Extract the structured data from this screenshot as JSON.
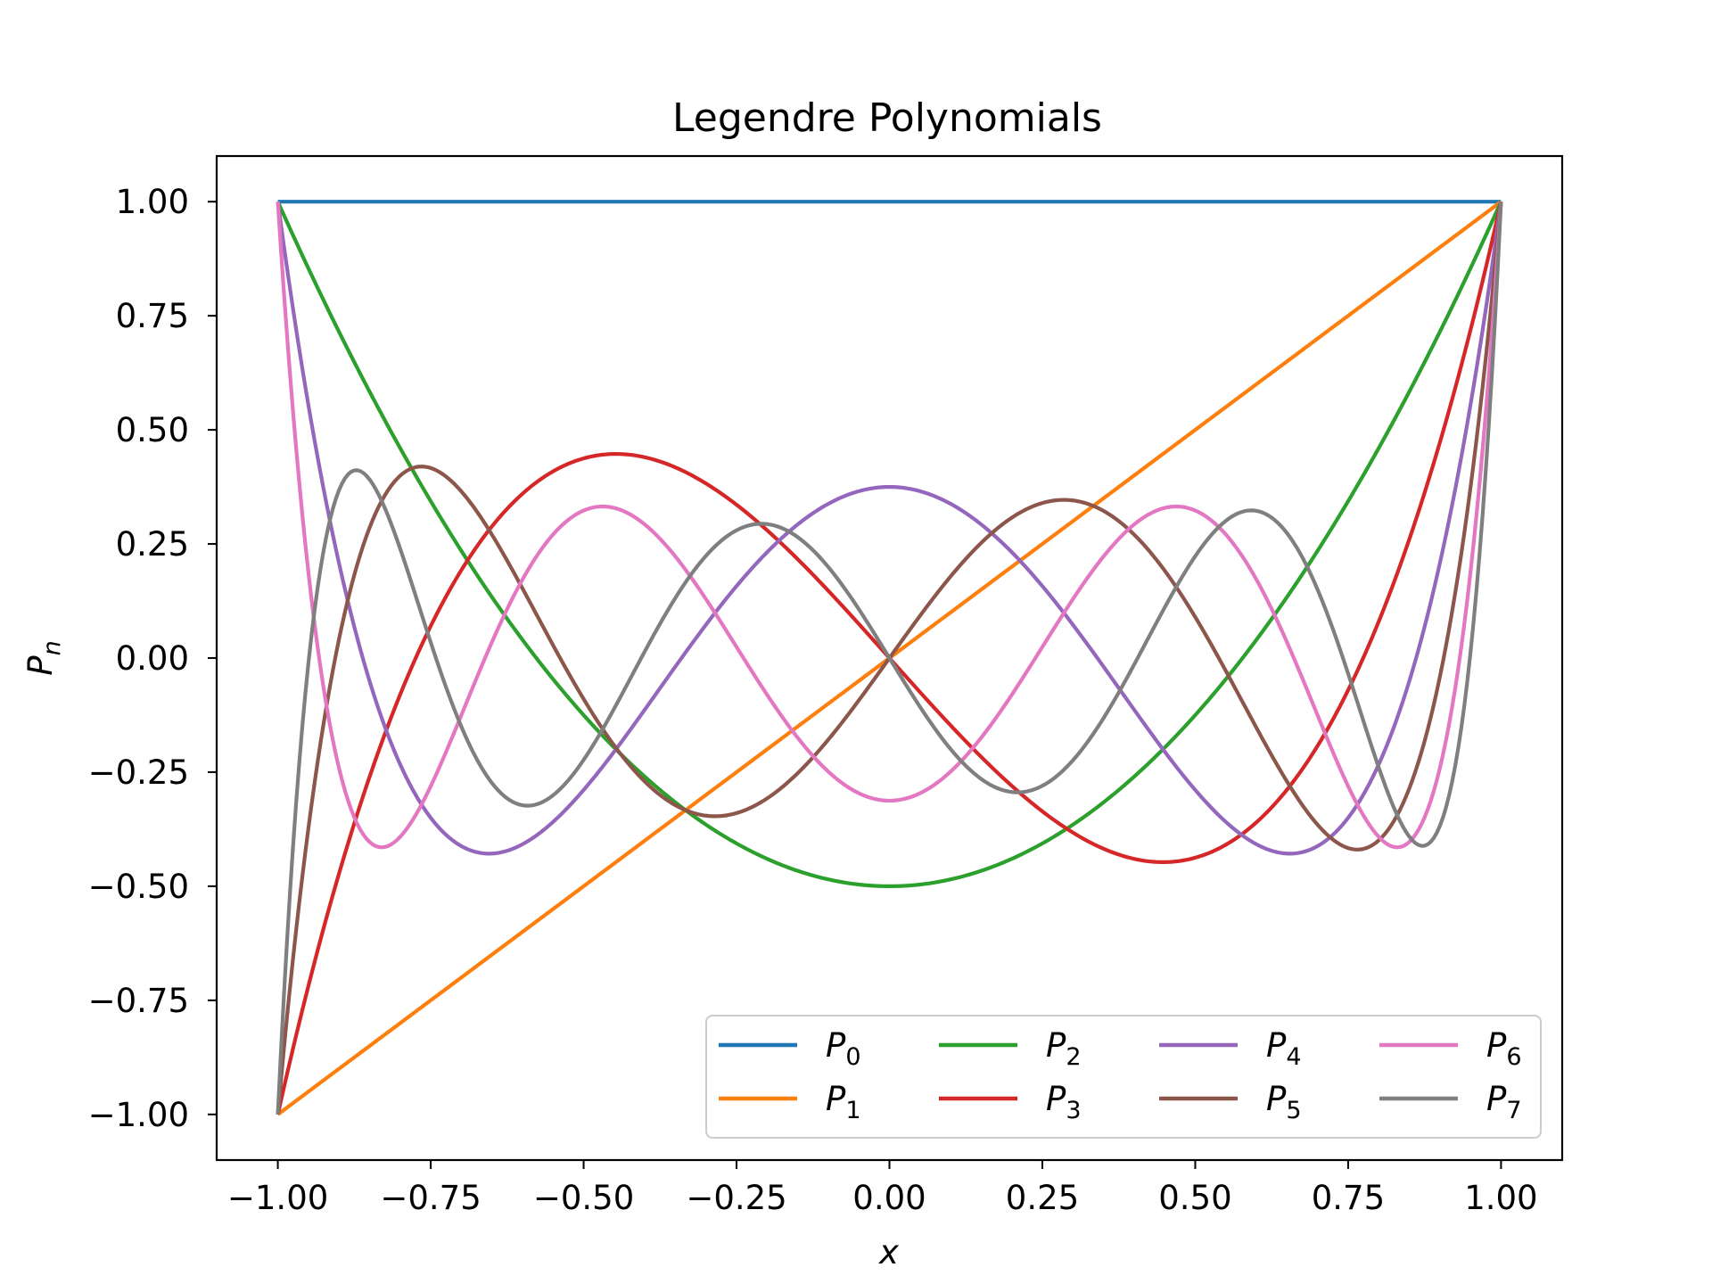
{
  "chart_data": {
    "type": "line",
    "title": "Legendre Polynomials",
    "xlabel": "x",
    "ylabel": "P",
    "ylabel_subscript": "n",
    "xlim": [
      -1.1,
      1.1
    ],
    "ylim": [
      -1.1,
      1.1
    ],
    "x_ticks": [
      -1.0,
      -0.75,
      -0.5,
      -0.25,
      0.0,
      0.25,
      0.5,
      0.75,
      1.0
    ],
    "x_tick_labels": [
      "−1.00",
      "−0.75",
      "−0.50",
      "−0.25",
      "0.00",
      "0.25",
      "0.50",
      "0.75",
      "1.00"
    ],
    "y_ticks": [
      1.0,
      0.75,
      0.5,
      0.25,
      0.0,
      -0.25,
      -0.5,
      -0.75,
      -1.0
    ],
    "y_tick_labels": [
      "1.00",
      "0.75",
      "0.50",
      "0.25",
      "0.00",
      "−0.25",
      "−0.50",
      "−0.75",
      "−1.00"
    ],
    "grid": false,
    "legend_position": "lower-right",
    "legend_columns": 4,
    "x_domain": [
      -1.0,
      1.0
    ],
    "series": [
      {
        "name": "P",
        "sub": "0",
        "color": "#1f77b4",
        "coefficients": [
          1
        ]
      },
      {
        "name": "P",
        "sub": "1",
        "color": "#ff7f0e",
        "coefficients": [
          0,
          1
        ]
      },
      {
        "name": "P",
        "sub": "2",
        "color": "#2ca02c",
        "coefficients": [
          -0.5,
          0,
          1.5
        ]
      },
      {
        "name": "P",
        "sub": "3",
        "color": "#d62728",
        "coefficients": [
          0,
          -1.5,
          0,
          2.5
        ]
      },
      {
        "name": "P",
        "sub": "4",
        "color": "#9467bd",
        "coefficients": [
          0.375,
          0,
          -3.75,
          0,
          4.375
        ]
      },
      {
        "name": "P",
        "sub": "5",
        "color": "#8c564b",
        "coefficients": [
          0,
          1.875,
          0,
          -8.75,
          0,
          7.875
        ]
      },
      {
        "name": "P",
        "sub": "6",
        "color": "#e377c2",
        "coefficients": [
          -0.3125,
          0,
          6.5625,
          0,
          -19.6875,
          0,
          14.4375
        ]
      },
      {
        "name": "P",
        "sub": "7",
        "color": "#7f7f7f",
        "coefficients": [
          0,
          -2.1875,
          0,
          19.6875,
          0,
          -43.3125,
          0,
          26.8125
        ]
      }
    ]
  }
}
